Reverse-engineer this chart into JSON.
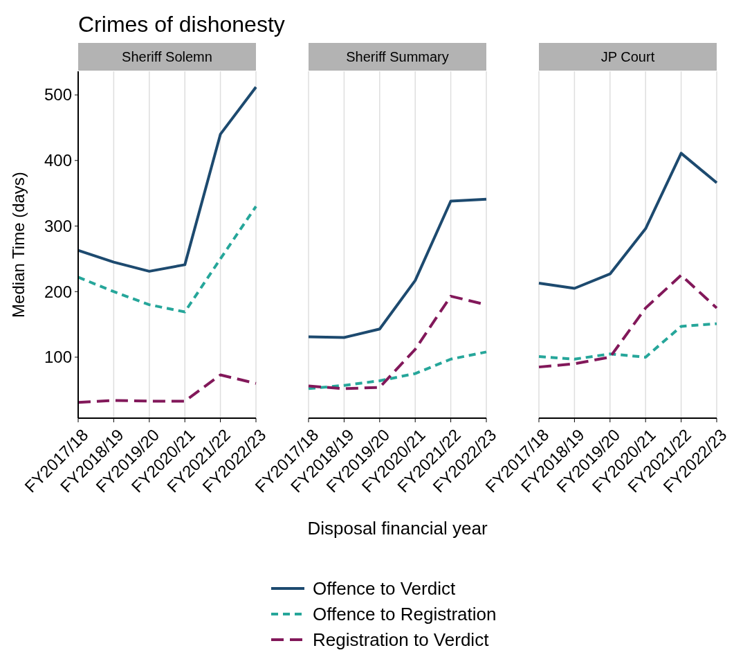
{
  "chart_data": [
    {
      "type": "line",
      "title": "Crimes of dishonesty",
      "subtitle": "Sheriff Solemn",
      "ylabel": "Median Time (days)",
      "categories": [
        "FY2017/18",
        "FY2018/19",
        "FY2019/20",
        "FY2020/21",
        "FY2021/22",
        "FY2022/23"
      ],
      "ylim": [
        7,
        536
      ],
      "yticks": [
        100,
        200,
        300,
        400,
        500
      ],
      "grid": "x",
      "series": [
        {
          "color": "#1d4a6f",
          "line_style": "solid",
          "values": [
            263,
            245,
            231,
            241,
            440,
            512
          ]
        },
        {
          "color": "#26a69a",
          "line_style": "dashed",
          "values": [
            222,
            200,
            180,
            169,
            250,
            330
          ]
        },
        {
          "color": "#82185a",
          "line_style": "dashed",
          "values": [
            31,
            34,
            33,
            33,
            73,
            60
          ]
        }
      ]
    },
    {
      "type": "line",
      "subtitle": "Sheriff Summary",
      "xlabel": "Disposal financial year",
      "categories": [
        "FY2017/18",
        "FY2018/19",
        "FY2019/20",
        "FY2020/21",
        "FY2021/22",
        "FY2022/23"
      ],
      "ylim": [
        7,
        536
      ],
      "tick_labels": "x",
      "grid": "x",
      "legend": "bottom",
      "series": [
        {
          "name": "Offence to Verdict",
          "color": "#1d4a6f",
          "line_style": "solid",
          "values": [
            131,
            130,
            143,
            217,
            338,
            341
          ]
        },
        {
          "name": "Offence to Registration",
          "color": "#26a69a",
          "line_style": "dashed",
          "values": [
            52,
            57,
            64,
            75,
            97,
            108
          ]
        },
        {
          "name": "Registration to Verdict",
          "color": "#82185a",
          "line_style": "dashed",
          "values": [
            56,
            52,
            54,
            112,
            193,
            180
          ]
        }
      ]
    },
    {
      "type": "line",
      "subtitle": "JP Court",
      "categories": [
        "FY2017/18",
        "FY2018/19",
        "FY2019/20",
        "FY2020/21",
        "FY2021/22",
        "FY2022/23"
      ],
      "ylim": [
        7,
        536
      ],
      "tick_labels": "x",
      "grid": "x",
      "series": [
        {
          "color": "#1d4a6f",
          "line_style": "solid",
          "values": [
            213,
            205,
            227,
            296,
            411,
            366
          ]
        },
        {
          "color": "#26a69a",
          "line_style": "dashed",
          "values": [
            101,
            97,
            105,
            100,
            147,
            151
          ]
        },
        {
          "color": "#82185a",
          "line_style": "dashed",
          "values": [
            85,
            90,
            100,
            175,
            225,
            175
          ]
        }
      ]
    }
  ]
}
